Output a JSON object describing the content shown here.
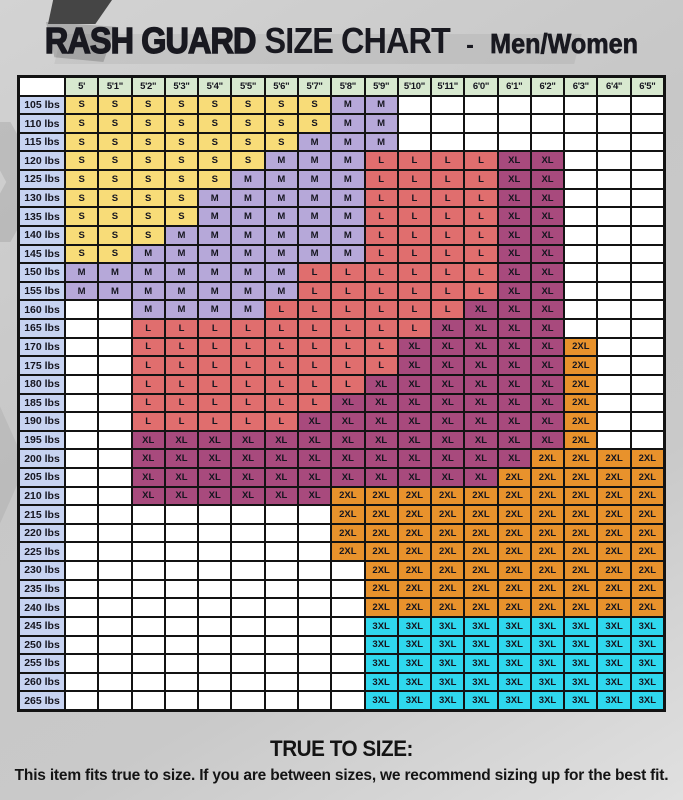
{
  "title": {
    "brand": "RASH GUARD",
    "size_chart": "SIZE CHART",
    "dash": "-",
    "audience": "Men/Women"
  },
  "footer": {
    "heading": "TRUE TO SIZE:",
    "text": "This item fits true to size. If you are between sizes, we recommend sizing up for the best fit."
  },
  "chart_data": {
    "type": "table",
    "title": "RASH GUARD SIZE CHART - Men/Women",
    "column_headers": [
      "5'",
      "5'1\"",
      "5'2\"",
      "5'3\"",
      "5'4\"",
      "5'5\"",
      "5'6\"",
      "5'7\"",
      "5'8\"",
      "5'9\"",
      "5'10\"",
      "5'11\"",
      "6'0\"",
      "6'1\"",
      "6'2\"",
      "6'3\"",
      "6'4\"",
      "6'5\""
    ],
    "corner_label": "",
    "rows": [
      {
        "label": "105 lbs",
        "cells": [
          "S",
          "S",
          "S",
          "S",
          "S",
          "S",
          "S",
          "S",
          "M",
          "M",
          "",
          "",
          "",
          "",
          "",
          "",
          "",
          ""
        ]
      },
      {
        "label": "110 lbs",
        "cells": [
          "S",
          "S",
          "S",
          "S",
          "S",
          "S",
          "S",
          "S",
          "M",
          "M",
          "",
          "",
          "",
          "",
          "",
          "",
          "",
          ""
        ]
      },
      {
        "label": "115 lbs",
        "cells": [
          "S",
          "S",
          "S",
          "S",
          "S",
          "S",
          "S",
          "M",
          "M",
          "M",
          "",
          "",
          "",
          "",
          "",
          "",
          "",
          ""
        ]
      },
      {
        "label": "120 lbs",
        "cells": [
          "S",
          "S",
          "S",
          "S",
          "S",
          "S",
          "M",
          "M",
          "M",
          "L",
          "L",
          "L",
          "L",
          "XL",
          "XL",
          "",
          "",
          ""
        ]
      },
      {
        "label": "125 lbs",
        "cells": [
          "S",
          "S",
          "S",
          "S",
          "S",
          "M",
          "M",
          "M",
          "M",
          "L",
          "L",
          "L",
          "L",
          "XL",
          "XL",
          "",
          "",
          ""
        ]
      },
      {
        "label": "130 lbs",
        "cells": [
          "S",
          "S",
          "S",
          "S",
          "M",
          "M",
          "M",
          "M",
          "M",
          "L",
          "L",
          "L",
          "L",
          "XL",
          "XL",
          "",
          "",
          ""
        ]
      },
      {
        "label": "135 lbs",
        "cells": [
          "S",
          "S",
          "S",
          "S",
          "M",
          "M",
          "M",
          "M",
          "M",
          "L",
          "L",
          "L",
          "L",
          "XL",
          "XL",
          "",
          "",
          ""
        ]
      },
      {
        "label": "140 lbs",
        "cells": [
          "S",
          "S",
          "S",
          "M",
          "M",
          "M",
          "M",
          "M",
          "M",
          "L",
          "L",
          "L",
          "L",
          "XL",
          "XL",
          "",
          "",
          ""
        ]
      },
      {
        "label": "145 lbs",
        "cells": [
          "S",
          "S",
          "M",
          "M",
          "M",
          "M",
          "M",
          "M",
          "M",
          "L",
          "L",
          "L",
          "L",
          "XL",
          "XL",
          "",
          "",
          ""
        ]
      },
      {
        "label": "150 lbs",
        "cells": [
          "M",
          "M",
          "M",
          "M",
          "M",
          "M",
          "M",
          "L",
          "L",
          "L",
          "L",
          "L",
          "L",
          "XL",
          "XL",
          "",
          "",
          ""
        ]
      },
      {
        "label": "155 lbs",
        "cells": [
          "M",
          "M",
          "M",
          "M",
          "M",
          "M",
          "M",
          "L",
          "L",
          "L",
          "L",
          "L",
          "L",
          "XL",
          "XL",
          "",
          "",
          ""
        ]
      },
      {
        "label": "160 lbs",
        "cells": [
          "",
          "",
          "M",
          "M",
          "M",
          "M",
          "L",
          "L",
          "L",
          "L",
          "L",
          "L",
          "XL",
          "XL",
          "XL",
          "",
          "",
          ""
        ]
      },
      {
        "label": "165 lbs",
        "cells": [
          "",
          "",
          "L",
          "L",
          "L",
          "L",
          "L",
          "L",
          "L",
          "L",
          "L",
          "XL",
          "XL",
          "XL",
          "XL",
          "",
          "",
          ""
        ]
      },
      {
        "label": "170 lbs",
        "cells": [
          "",
          "",
          "L",
          "L",
          "L",
          "L",
          "L",
          "L",
          "L",
          "L",
          "XL",
          "XL",
          "XL",
          "XL",
          "XL",
          "2XL",
          "",
          ""
        ]
      },
      {
        "label": "175 lbs",
        "cells": [
          "",
          "",
          "L",
          "L",
          "L",
          "L",
          "L",
          "L",
          "L",
          "L",
          "XL",
          "XL",
          "XL",
          "XL",
          "XL",
          "2XL",
          "",
          ""
        ]
      },
      {
        "label": "180 lbs",
        "cells": [
          "",
          "",
          "L",
          "L",
          "L",
          "L",
          "L",
          "L",
          "L",
          "XL",
          "XL",
          "XL",
          "XL",
          "XL",
          "XL",
          "2XL",
          "",
          ""
        ]
      },
      {
        "label": "185 lbs",
        "cells": [
          "",
          "",
          "L",
          "L",
          "L",
          "L",
          "L",
          "L",
          "XL",
          "XL",
          "XL",
          "XL",
          "XL",
          "XL",
          "XL",
          "2XL",
          "",
          ""
        ]
      },
      {
        "label": "190 lbs",
        "cells": [
          "",
          "",
          "L",
          "L",
          "L",
          "L",
          "L",
          "XL",
          "XL",
          "XL",
          "XL",
          "XL",
          "XL",
          "XL",
          "XL",
          "2XL",
          "",
          ""
        ]
      },
      {
        "label": "195 lbs",
        "cells": [
          "",
          "",
          "XL",
          "XL",
          "XL",
          "XL",
          "XL",
          "XL",
          "XL",
          "XL",
          "XL",
          "XL",
          "XL",
          "XL",
          "XL",
          "2XL",
          "",
          ""
        ]
      },
      {
        "label": "200 lbs",
        "cells": [
          "",
          "",
          "XL",
          "XL",
          "XL",
          "XL",
          "XL",
          "XL",
          "XL",
          "XL",
          "XL",
          "XL",
          "XL",
          "XL",
          "2XL",
          "2XL",
          "2XL",
          "2XL"
        ]
      },
      {
        "label": "205 lbs",
        "cells": [
          "",
          "",
          "XL",
          "XL",
          "XL",
          "XL",
          "XL",
          "XL",
          "XL",
          "XL",
          "XL",
          "XL",
          "XL",
          "2XL",
          "2XL",
          "2XL",
          "2XL",
          "2XL"
        ]
      },
      {
        "label": "210 lbs",
        "cells": [
          "",
          "",
          "XL",
          "XL",
          "XL",
          "XL",
          "XL",
          "XL",
          "2XL",
          "2XL",
          "2XL",
          "2XL",
          "2XL",
          "2XL",
          "2XL",
          "2XL",
          "2XL",
          "2XL"
        ]
      },
      {
        "label": "215 lbs",
        "cells": [
          "",
          "",
          "",
          "",
          "",
          "",
          "",
          "",
          "2XL",
          "2XL",
          "2XL",
          "2XL",
          "2XL",
          "2XL",
          "2XL",
          "2XL",
          "2XL",
          "2XL"
        ]
      },
      {
        "label": "220 lbs",
        "cells": [
          "",
          "",
          "",
          "",
          "",
          "",
          "",
          "",
          "2XL",
          "2XL",
          "2XL",
          "2XL",
          "2XL",
          "2XL",
          "2XL",
          "2XL",
          "2XL",
          "2XL"
        ]
      },
      {
        "label": "225 lbs",
        "cells": [
          "",
          "",
          "",
          "",
          "",
          "",
          "",
          "",
          "2XL",
          "2XL",
          "2XL",
          "2XL",
          "2XL",
          "2XL",
          "2XL",
          "2XL",
          "2XL",
          "2XL"
        ]
      },
      {
        "label": "230 lbs",
        "cells": [
          "",
          "",
          "",
          "",
          "",
          "",
          "",
          "",
          "",
          "2XL",
          "2XL",
          "2XL",
          "2XL",
          "2XL",
          "2XL",
          "2XL",
          "2XL",
          "2XL"
        ]
      },
      {
        "label": "235 lbs",
        "cells": [
          "",
          "",
          "",
          "",
          "",
          "",
          "",
          "",
          "",
          "2XL",
          "2XL",
          "2XL",
          "2XL",
          "2XL",
          "2XL",
          "2XL",
          "2XL",
          "2XL"
        ]
      },
      {
        "label": "240 lbs",
        "cells": [
          "",
          "",
          "",
          "",
          "",
          "",
          "",
          "",
          "",
          "2XL",
          "2XL",
          "2XL",
          "2XL",
          "2XL",
          "2XL",
          "2XL",
          "2XL",
          "2XL"
        ]
      },
      {
        "label": "245 lbs",
        "cells": [
          "",
          "",
          "",
          "",
          "",
          "",
          "",
          "",
          "",
          "3XL",
          "3XL",
          "3XL",
          "3XL",
          "3XL",
          "3XL",
          "3XL",
          "3XL",
          "3XL"
        ]
      },
      {
        "label": "250 lbs",
        "cells": [
          "",
          "",
          "",
          "",
          "",
          "",
          "",
          "",
          "",
          "3XL",
          "3XL",
          "3XL",
          "3XL",
          "3XL",
          "3XL",
          "3XL",
          "3XL",
          "3XL"
        ]
      },
      {
        "label": "255 lbs",
        "cells": [
          "",
          "",
          "",
          "",
          "",
          "",
          "",
          "",
          "",
          "3XL",
          "3XL",
          "3XL",
          "3XL",
          "3XL",
          "3XL",
          "3XL",
          "3XL",
          "3XL"
        ]
      },
      {
        "label": "260 lbs",
        "cells": [
          "",
          "",
          "",
          "",
          "",
          "",
          "",
          "",
          "",
          "3XL",
          "3XL",
          "3XL",
          "3XL",
          "3XL",
          "3XL",
          "3XL",
          "3XL",
          "3XL"
        ]
      },
      {
        "label": "265 lbs",
        "cells": [
          "",
          "",
          "",
          "",
          "",
          "",
          "",
          "",
          "",
          "3XL",
          "3XL",
          "3XL",
          "3XL",
          "3XL",
          "3XL",
          "3XL",
          "3XL",
          "3XL"
        ]
      }
    ],
    "colors": {
      "header_bg": "#d8e9d0",
      "row_label_bg": "#c7d3f1",
      "corner_bg": "#ffffff",
      "empty_bg": "#ffffff",
      "grid_line": "#131313",
      "sizes": {
        "S": "#f8dc78",
        "M": "#b6a8d9",
        "L": "#e06e6e",
        "XL": "#a84a7d",
        "2XL": "#e8922c",
        "3XL": "#2fd8ee"
      }
    }
  }
}
